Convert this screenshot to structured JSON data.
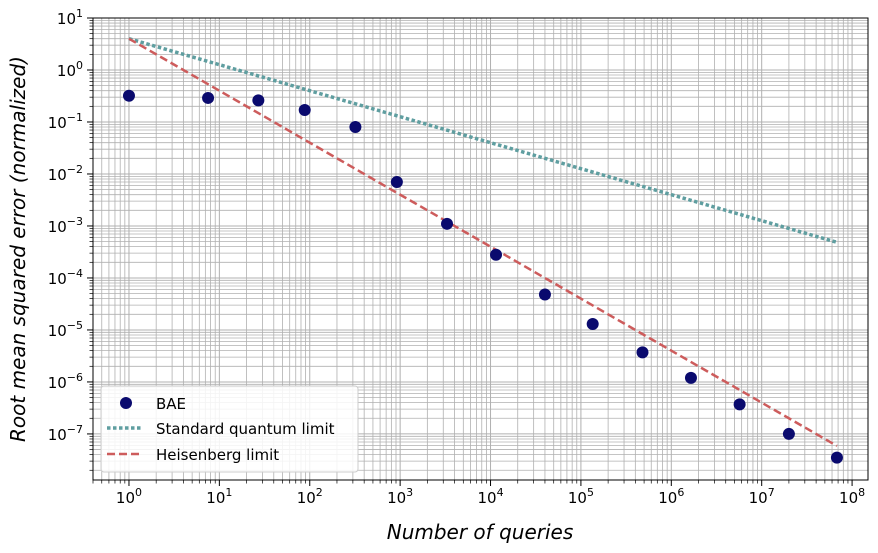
{
  "chart_data": {
    "type": "scatter",
    "title": "",
    "xlabel": "Number of queries",
    "ylabel": "Root mean squared error (normalized)",
    "x_scale": "log",
    "y_scale": "log",
    "xlim": [
      0.4,
      150000000
    ],
    "ylim": [
      1.3e-08,
      10
    ],
    "grid": "major and minor",
    "legend_position": "bottom-left",
    "x_ticks": [
      {
        "base": "10",
        "exp": "0"
      },
      {
        "base": "10",
        "exp": "1"
      },
      {
        "base": "10",
        "exp": "2"
      },
      {
        "base": "10",
        "exp": "3"
      },
      {
        "base": "10",
        "exp": "4"
      },
      {
        "base": "10",
        "exp": "5"
      },
      {
        "base": "10",
        "exp": "6"
      },
      {
        "base": "10",
        "exp": "7"
      },
      {
        "base": "10",
        "exp": "8"
      }
    ],
    "y_ticks": [
      {
        "base": "10",
        "exp": "1"
      },
      {
        "base": "10",
        "exp": "0"
      },
      {
        "base": "10",
        "exp": "−1"
      },
      {
        "base": "10",
        "exp": "−2"
      },
      {
        "base": "10",
        "exp": "−3"
      },
      {
        "base": "10",
        "exp": "−4"
      },
      {
        "base": "10",
        "exp": "−5"
      },
      {
        "base": "10",
        "exp": "−6"
      },
      {
        "base": "10",
        "exp": "−7"
      }
    ],
    "series": [
      {
        "name": "BAE",
        "kind": "scatter",
        "color": "#0a0a6e",
        "x": [
          1,
          7.5,
          27,
          88,
          320,
          920,
          3300,
          11500,
          40000,
          135000,
          480000,
          1650000,
          5700000,
          20000000,
          68000000
        ],
        "y": [
          0.32,
          0.29,
          0.26,
          0.17,
          0.08,
          0.007,
          0.0011,
          0.00028,
          4.8e-05,
          1.3e-05,
          3.7e-06,
          1.2e-06,
          3.7e-07,
          1e-07,
          3.5e-08
        ]
      },
      {
        "name": "Standard quantum limit",
        "kind": "line",
        "style": "dotted",
        "color": "#5f9ea0",
        "x": [
          1,
          68000000
        ],
        "y": [
          4.0,
          0.000485
        ]
      },
      {
        "name": "Heisenberg limit",
        "kind": "line",
        "style": "dashed",
        "color": "#cd5c5c",
        "x": [
          1,
          68000000
        ],
        "y": [
          4.0,
          5.88e-08
        ]
      }
    ]
  }
}
